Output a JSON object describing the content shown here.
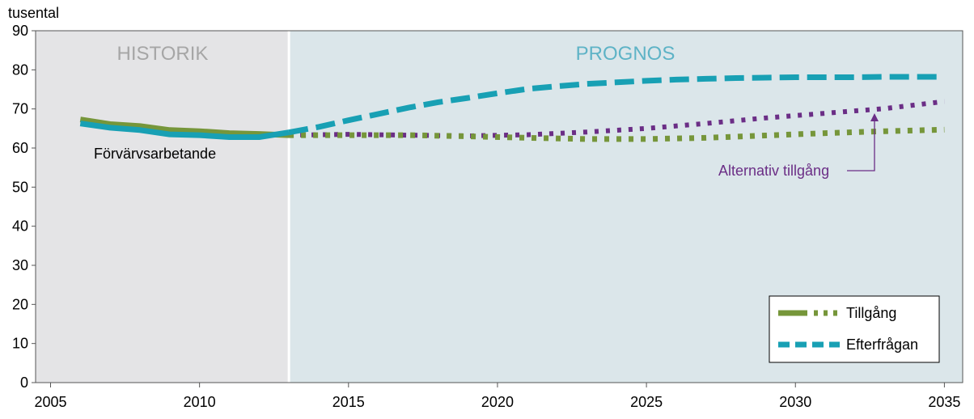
{
  "chart_data": {
    "type": "line",
    "ylabel": "tusental",
    "xlim": [
      2005,
      2035
    ],
    "ylim": [
      0,
      90
    ],
    "x_ticks": [
      "2005",
      "2010",
      "2015",
      "2020",
      "2025",
      "2030",
      "2035"
    ],
    "y_ticks": [
      "0",
      "10",
      "20",
      "30",
      "40",
      "50",
      "60",
      "70",
      "80",
      "90"
    ],
    "regions": [
      {
        "label": "HISTORIK",
        "x_start": 2005,
        "x_end": 2013,
        "color": "#e4e4e6",
        "label_color": "#a6a6a6"
      },
      {
        "label": "PROGNOS",
        "x_start": 2013,
        "x_end": 2035,
        "color": "#dbe6ea",
        "label_color": "#5eb3c6"
      }
    ],
    "series": [
      {
        "name": "Tillgång",
        "style": "solid-history, dotted-forecast",
        "color": "#76963a",
        "x": [
          2006,
          2007,
          2008,
          2009,
          2010,
          2011,
          2012,
          2013,
          2015,
          2017,
          2019,
          2021,
          2023,
          2025,
          2027,
          2029,
          2031,
          2033,
          2035
        ],
        "values": [
          67.3,
          66.1,
          65.6,
          64.6,
          64.3,
          63.8,
          63.6,
          63.3,
          63.3,
          63.3,
          63.0,
          62.6,
          62.3,
          62.3,
          62.6,
          63.2,
          63.8,
          64.3,
          64.7
        ]
      },
      {
        "name": "Efterfrågan",
        "style": "solid-history, dashed-forecast",
        "color": "#18a0b4",
        "x": [
          2006,
          2007,
          2008,
          2009,
          2010,
          2011,
          2012,
          2013,
          2014,
          2015,
          2016,
          2017,
          2018,
          2019,
          2020,
          2021,
          2022,
          2023,
          2024,
          2025,
          2026,
          2027,
          2028,
          2029,
          2030,
          2031,
          2032,
          2033,
          2034,
          2035
        ],
        "values": [
          66.3,
          65.2,
          64.6,
          63.5,
          63.3,
          62.8,
          62.8,
          64.0,
          65.4,
          67.1,
          68.7,
          70.3,
          71.7,
          72.8,
          74.0,
          75.1,
          75.8,
          76.4,
          76.8,
          77.2,
          77.5,
          77.7,
          77.9,
          78.0,
          78.1,
          78.1,
          78.1,
          78.2,
          78.2,
          78.2
        ]
      },
      {
        "name": "Alternativ tillgång",
        "style": "dotted",
        "color": "#6b2e86",
        "x": [
          2013,
          2015,
          2017,
          2019,
          2021,
          2023,
          2025,
          2027,
          2029,
          2031,
          2033,
          2035
        ],
        "values": [
          63.3,
          63.5,
          63.3,
          63.1,
          63.4,
          64.1,
          65.0,
          66.3,
          67.7,
          68.9,
          70.1,
          71.9
        ]
      }
    ],
    "annotations": [
      {
        "text": "Förvärvsarbetande",
        "color": "#000000"
      },
      {
        "text": "Alternativ tillgång",
        "color": "#6b2e86",
        "points_to_x": 2033
      }
    ],
    "legend": {
      "position": "bottom-right",
      "entries": [
        {
          "label": "Tillgång",
          "color": "#76963a"
        },
        {
          "label": "Efterfrågan",
          "color": "#18a0b4"
        }
      ]
    },
    "grid": false
  }
}
